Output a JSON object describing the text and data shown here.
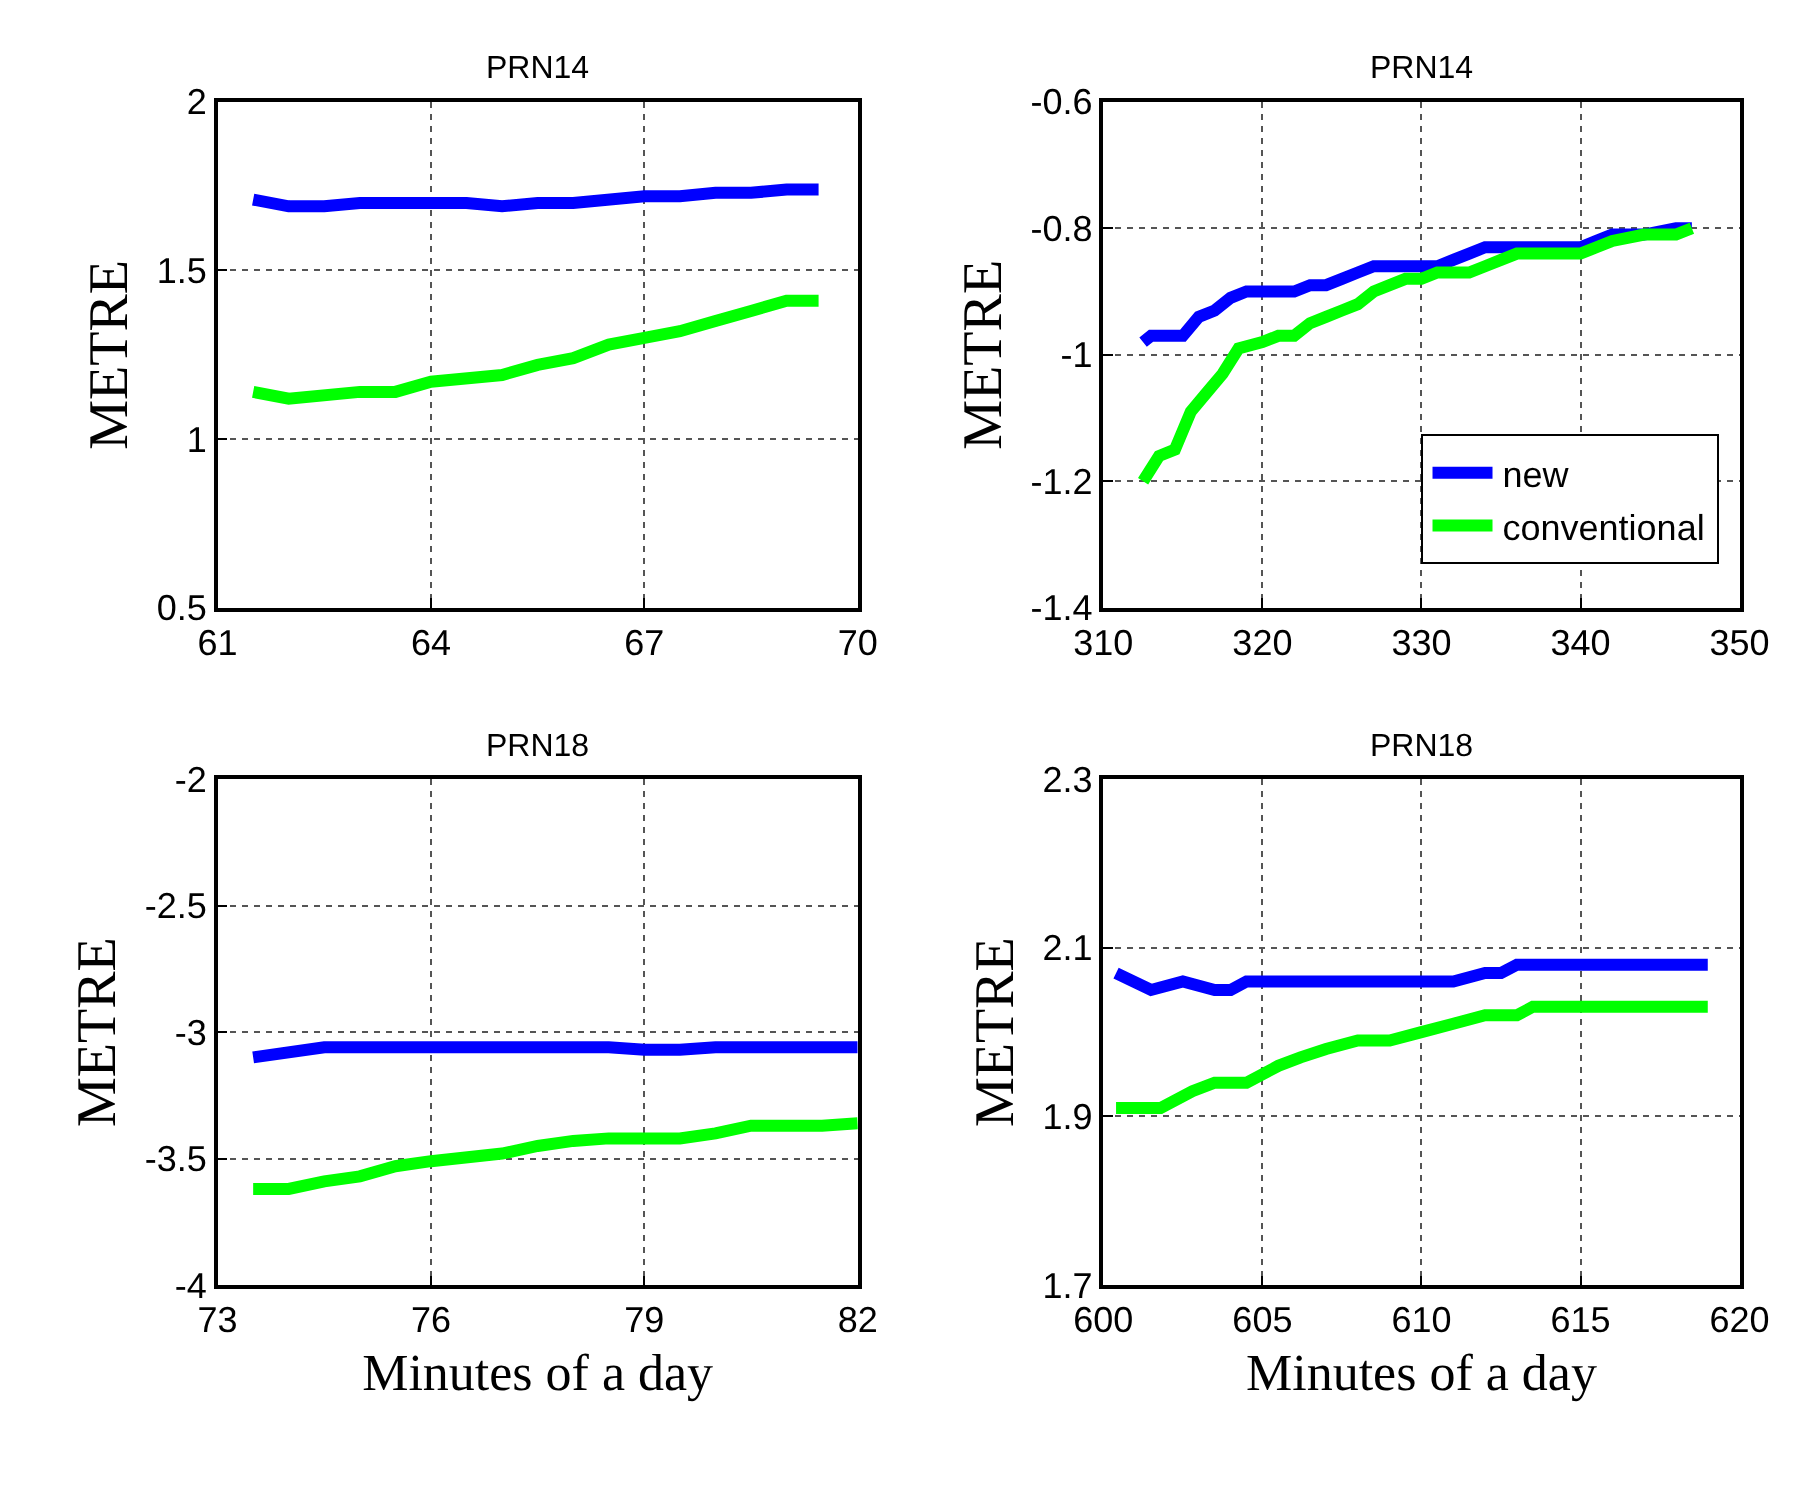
{
  "chart_data": [
    {
      "type": "line",
      "title": "PRN14",
      "ylabel": "METRE",
      "xlim": [
        61,
        70
      ],
      "xticks": [
        61,
        64,
        67,
        70
      ],
      "ylim": [
        0.5,
        2
      ],
      "yticks": [
        0.5,
        1,
        1.5,
        2
      ],
      "grid": true,
      "line_style": "solid",
      "marker": "none",
      "series": [
        {
          "color": "#0000ff",
          "x": [
            61.5,
            62,
            62.5,
            63,
            64,
            64.5,
            65,
            65.5,
            66,
            67,
            67.5,
            68,
            68.5,
            69,
            69.45
          ],
          "values": [
            1.71,
            1.69,
            1.69,
            1.7,
            1.7,
            1.7,
            1.69,
            1.7,
            1.7,
            1.72,
            1.72,
            1.73,
            1.73,
            1.74,
            1.74
          ]
        },
        {
          "color": "#00ff00",
          "x": [
            61.5,
            62,
            63,
            63.5,
            64,
            65,
            65.5,
            66,
            66.5,
            67,
            67.5,
            68,
            68.5,
            69,
            69.45
          ],
          "values": [
            1.14,
            1.12,
            1.14,
            1.14,
            1.17,
            1.19,
            1.22,
            1.24,
            1.28,
            1.3,
            1.32,
            1.35,
            1.38,
            1.41,
            1.41
          ]
        }
      ]
    },
    {
      "type": "line",
      "title": "PRN14",
      "ylabel": "METRE",
      "xlim": [
        310,
        350
      ],
      "xticks": [
        310,
        320,
        330,
        340,
        350
      ],
      "ylim": [
        -1.4,
        -0.6
      ],
      "yticks": [
        -1.4,
        -1.2,
        -1,
        -0.8,
        -0.6
      ],
      "grid": true,
      "legend": "bottom right",
      "line_style": "solid",
      "marker": "none",
      "series": [
        {
          "name": "new",
          "color": "#0000ff",
          "x": [
            312.5,
            313,
            314,
            315,
            316,
            317,
            318,
            319,
            320,
            321,
            322,
            323,
            324,
            325,
            326,
            327,
            328,
            330,
            331,
            332,
            333,
            334,
            336,
            338,
            340,
            341,
            342,
            344,
            346,
            347
          ],
          "values": [
            -0.98,
            -0.97,
            -0.97,
            -0.97,
            -0.94,
            -0.93,
            -0.91,
            -0.9,
            -0.9,
            -0.9,
            -0.9,
            -0.89,
            -0.89,
            -0.88,
            -0.87,
            -0.86,
            -0.86,
            -0.86,
            -0.86,
            -0.85,
            -0.84,
            -0.83,
            -0.83,
            -0.83,
            -0.83,
            -0.82,
            -0.81,
            -0.81,
            -0.8,
            -0.8
          ]
        },
        {
          "name": "conventional",
          "color": "#00ff00",
          "x": [
            312.5,
            313.5,
            314.5,
            315.5,
            316.5,
            317.5,
            318.5,
            320,
            321,
            322,
            323,
            324,
            325,
            326,
            327,
            328,
            329,
            330,
            331,
            333,
            334,
            335,
            336,
            338,
            340,
            341,
            342,
            344,
            346,
            347
          ],
          "values": [
            -1.2,
            -1.16,
            -1.15,
            -1.09,
            -1.06,
            -1.03,
            -0.99,
            -0.98,
            -0.97,
            -0.97,
            -0.95,
            -0.94,
            -0.93,
            -0.92,
            -0.9,
            -0.89,
            -0.88,
            -0.88,
            -0.87,
            -0.87,
            -0.86,
            -0.85,
            -0.84,
            -0.84,
            -0.84,
            -0.83,
            -0.82,
            -0.81,
            -0.81,
            -0.8
          ]
        }
      ]
    },
    {
      "type": "line",
      "title": "PRN18",
      "ylabel": "METRE",
      "xlabel": "Minutes of a day",
      "xlim": [
        73,
        82
      ],
      "xticks": [
        73,
        76,
        79,
        82
      ],
      "ylim": [
        -4,
        -2
      ],
      "yticks": [
        -4,
        -3.5,
        -3,
        -2.5,
        -2
      ],
      "grid": true,
      "line_style": "solid",
      "marker": "none",
      "series": [
        {
          "color": "#0000ff",
          "x": [
            73.5,
            74.5,
            75.5,
            76,
            78.5,
            79,
            79.5,
            80,
            82
          ],
          "values": [
            -3.1,
            -3.06,
            -3.06,
            -3.06,
            -3.06,
            -3.07,
            -3.07,
            -3.06,
            -3.06
          ]
        },
        {
          "color": "#00ff00",
          "x": [
            73.5,
            74,
            74.5,
            75,
            75.5,
            76,
            77,
            77.5,
            78,
            78.5,
            79.5,
            80,
            80.5,
            81.5,
            82
          ],
          "values": [
            -3.62,
            -3.62,
            -3.59,
            -3.57,
            -3.53,
            -3.51,
            -3.48,
            -3.45,
            -3.43,
            -3.42,
            -3.42,
            -3.4,
            -3.37,
            -3.37,
            -3.36
          ]
        }
      ]
    },
    {
      "type": "line",
      "title": "PRN18",
      "ylabel": "METRE",
      "xlabel": "Minutes of a day",
      "xlim": [
        600,
        620
      ],
      "xticks": [
        600,
        605,
        610,
        615,
        620
      ],
      "ylim": [
        1.7,
        2.3
      ],
      "yticks": [
        1.7,
        1.9,
        2.1,
        2.3
      ],
      "grid": true,
      "line_style": "solid",
      "marker": "none",
      "series": [
        {
          "color": "#0000ff",
          "x": [
            600.4,
            601.5,
            602.5,
            603.5,
            604,
            604.5,
            605.5,
            607,
            608,
            609,
            610,
            611,
            612,
            612.5,
            613,
            619
          ],
          "values": [
            2.07,
            2.05,
            2.06,
            2.05,
            2.05,
            2.06,
            2.06,
            2.06,
            2.06,
            2.06,
            2.06,
            2.06,
            2.07,
            2.07,
            2.08,
            2.08
          ]
        },
        {
          "color": "#00ff00",
          "x": [
            600.4,
            601.8,
            602.8,
            603.5,
            604.5,
            605.5,
            606.2,
            607,
            608,
            609,
            610,
            611,
            612,
            613,
            613.5,
            619
          ],
          "values": [
            1.91,
            1.91,
            1.93,
            1.94,
            1.94,
            1.96,
            1.97,
            1.98,
            1.99,
            1.99,
            2.0,
            2.01,
            2.02,
            2.02,
            2.03,
            2.03
          ]
        }
      ]
    }
  ]
}
